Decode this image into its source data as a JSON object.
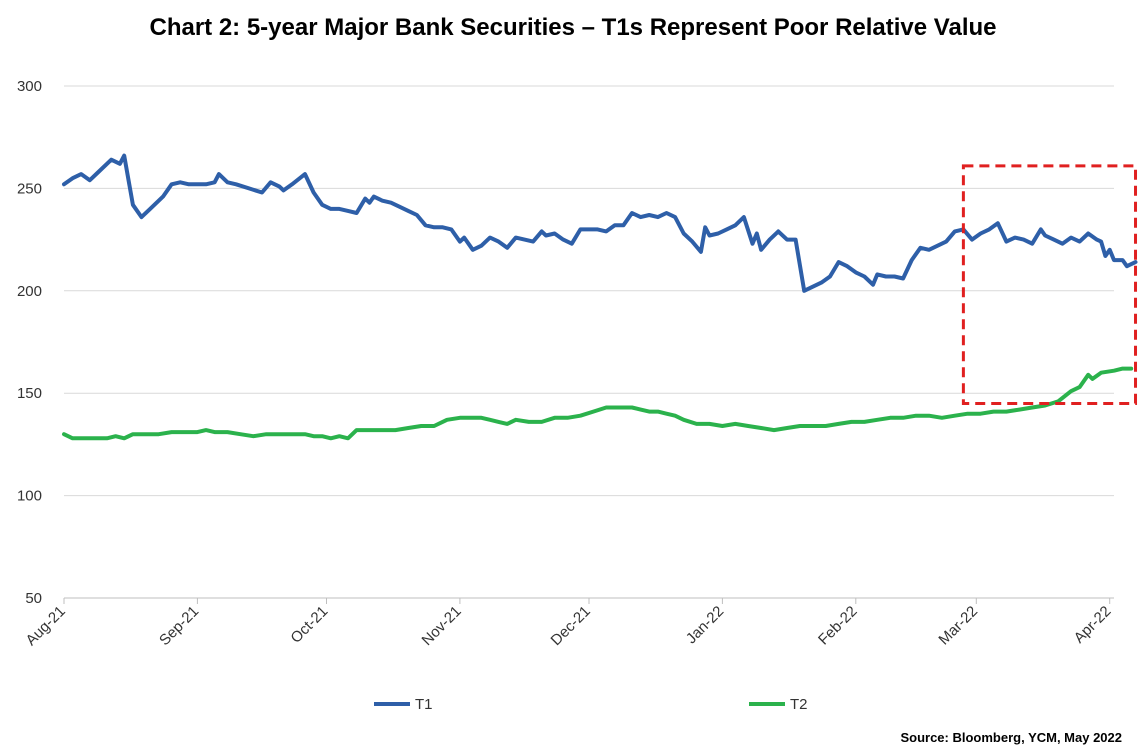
{
  "chart_data": {
    "type": "line",
    "title": "Chart 2: 5-year Major Bank Securities – T1s Represent Poor Relative Value",
    "ylim": [
      50,
      300
    ],
    "yticks": [
      300,
      250,
      200,
      150,
      100,
      50
    ],
    "x_range": [
      0,
      244
    ],
    "xticks": [
      {
        "label": "Aug-21",
        "x": 0
      },
      {
        "label": "Sep-21",
        "x": 31
      },
      {
        "label": "Oct-21",
        "x": 61
      },
      {
        "label": "Nov-21",
        "x": 92
      },
      {
        "label": "Dec-21",
        "x": 122
      },
      {
        "label": "Jan-22",
        "x": 153
      },
      {
        "label": "Feb-22",
        "x": 184
      },
      {
        "label": "Mar-22",
        "x": 212
      },
      {
        "label": "Apr-22",
        "x": 243
      }
    ],
    "grid": true,
    "legend_position": "bottom",
    "highlight_box": {
      "x_start": 209,
      "x_end": 249,
      "y_low": 145,
      "y_high": 261,
      "color": "#e02020"
    },
    "series": [
      {
        "name": "T1",
        "color": "#2e5fa8",
        "points": [
          [
            0,
            252
          ],
          [
            2,
            255
          ],
          [
            4,
            257
          ],
          [
            6,
            254
          ],
          [
            8,
            258
          ],
          [
            11,
            264
          ],
          [
            13,
            262
          ],
          [
            14,
            266
          ],
          [
            16,
            242
          ],
          [
            18,
            236
          ],
          [
            20,
            240
          ],
          [
            23,
            246
          ],
          [
            25,
            252
          ],
          [
            27,
            253
          ],
          [
            29,
            252
          ],
          [
            31,
            252
          ],
          [
            33,
            252
          ],
          [
            35,
            253
          ],
          [
            36,
            257
          ],
          [
            38,
            253
          ],
          [
            40,
            252
          ],
          [
            43,
            250
          ],
          [
            46,
            248
          ],
          [
            48,
            253
          ],
          [
            50,
            251
          ],
          [
            51,
            249
          ],
          [
            53,
            252
          ],
          [
            56,
            257
          ],
          [
            58,
            248
          ],
          [
            60,
            242
          ],
          [
            62,
            240
          ],
          [
            64,
            240
          ],
          [
            66,
            239
          ],
          [
            68,
            238
          ],
          [
            70,
            245
          ],
          [
            71,
            243
          ],
          [
            72,
            246
          ],
          [
            74,
            244
          ],
          [
            76,
            243
          ],
          [
            78,
            241
          ],
          [
            80,
            239
          ],
          [
            82,
            237
          ],
          [
            84,
            232
          ],
          [
            86,
            231
          ],
          [
            88,
            231
          ],
          [
            90,
            230
          ],
          [
            92,
            224
          ],
          [
            93,
            226
          ],
          [
            95,
            220
          ],
          [
            97,
            222
          ],
          [
            99,
            226
          ],
          [
            101,
            224
          ],
          [
            103,
            221
          ],
          [
            105,
            226
          ],
          [
            107,
            225
          ],
          [
            109,
            224
          ],
          [
            111,
            229
          ],
          [
            112,
            227
          ],
          [
            114,
            228
          ],
          [
            116,
            225
          ],
          [
            118,
            223
          ],
          [
            120,
            230
          ],
          [
            122,
            230
          ],
          [
            124,
            230
          ],
          [
            126,
            229
          ],
          [
            128,
            232
          ],
          [
            130,
            232
          ],
          [
            132,
            238
          ],
          [
            134,
            236
          ],
          [
            136,
            237
          ],
          [
            138,
            236
          ],
          [
            140,
            238
          ],
          [
            142,
            236
          ],
          [
            144,
            228
          ],
          [
            146,
            224
          ],
          [
            148,
            219
          ],
          [
            149,
            231
          ],
          [
            150,
            227
          ],
          [
            152,
            228
          ],
          [
            154,
            230
          ],
          [
            156,
            232
          ],
          [
            158,
            236
          ],
          [
            160,
            223
          ],
          [
            161,
            228
          ],
          [
            162,
            220
          ],
          [
            164,
            225
          ],
          [
            166,
            229
          ],
          [
            168,
            225
          ],
          [
            170,
            225
          ],
          [
            172,
            200
          ],
          [
            174,
            202
          ],
          [
            176,
            204
          ],
          [
            178,
            207
          ],
          [
            180,
            214
          ],
          [
            182,
            212
          ],
          [
            184,
            209
          ],
          [
            186,
            207
          ],
          [
            188,
            203
          ],
          [
            189,
            208
          ],
          [
            191,
            207
          ],
          [
            193,
            207
          ],
          [
            195,
            206
          ],
          [
            197,
            215
          ],
          [
            199,
            221
          ],
          [
            201,
            220
          ],
          [
            203,
            222
          ],
          [
            205,
            224
          ],
          [
            207,
            229
          ],
          [
            209,
            230
          ],
          [
            211,
            225
          ],
          [
            213,
            228
          ],
          [
            215,
            230
          ],
          [
            217,
            233
          ],
          [
            219,
            224
          ],
          [
            221,
            226
          ],
          [
            223,
            225
          ],
          [
            225,
            223
          ],
          [
            227,
            230
          ],
          [
            228,
            227
          ],
          [
            230,
            225
          ],
          [
            232,
            223
          ],
          [
            234,
            226
          ],
          [
            235,
            225
          ],
          [
            236,
            224
          ],
          [
            238,
            228
          ],
          [
            240,
            225
          ],
          [
            241,
            224
          ],
          [
            242,
            217
          ],
          [
            243,
            220
          ],
          [
            244,
            215
          ],
          [
            246,
            215
          ],
          [
            247,
            212
          ],
          [
            249,
            214
          ]
        ]
      },
      {
        "name": "T2",
        "color": "#2bb24c",
        "points": [
          [
            0,
            130
          ],
          [
            2,
            128
          ],
          [
            5,
            128
          ],
          [
            8,
            128
          ],
          [
            10,
            128
          ],
          [
            12,
            129
          ],
          [
            14,
            128
          ],
          [
            16,
            130
          ],
          [
            19,
            130
          ],
          [
            22,
            130
          ],
          [
            25,
            131
          ],
          [
            28,
            131
          ],
          [
            31,
            131
          ],
          [
            33,
            132
          ],
          [
            35,
            131
          ],
          [
            38,
            131
          ],
          [
            41,
            130
          ],
          [
            44,
            129
          ],
          [
            47,
            130
          ],
          [
            50,
            130
          ],
          [
            53,
            130
          ],
          [
            56,
            130
          ],
          [
            58,
            129
          ],
          [
            60,
            129
          ],
          [
            62,
            128
          ],
          [
            64,
            129
          ],
          [
            66,
            128
          ],
          [
            68,
            132
          ],
          [
            71,
            132
          ],
          [
            74,
            132
          ],
          [
            77,
            132
          ],
          [
            80,
            133
          ],
          [
            83,
            134
          ],
          [
            86,
            134
          ],
          [
            89,
            137
          ],
          [
            92,
            138
          ],
          [
            95,
            138
          ],
          [
            97,
            138
          ],
          [
            99,
            137
          ],
          [
            101,
            136
          ],
          [
            103,
            135
          ],
          [
            105,
            137
          ],
          [
            108,
            136
          ],
          [
            111,
            136
          ],
          [
            114,
            138
          ],
          [
            117,
            138
          ],
          [
            120,
            139
          ],
          [
            123,
            141
          ],
          [
            126,
            143
          ],
          [
            129,
            143
          ],
          [
            132,
            143
          ],
          [
            134,
            142
          ],
          [
            136,
            141
          ],
          [
            138,
            141
          ],
          [
            140,
            140
          ],
          [
            142,
            139
          ],
          [
            144,
            137
          ],
          [
            147,
            135
          ],
          [
            150,
            135
          ],
          [
            153,
            134
          ],
          [
            156,
            135
          ],
          [
            159,
            134
          ],
          [
            162,
            133
          ],
          [
            165,
            132
          ],
          [
            168,
            133
          ],
          [
            171,
            134
          ],
          [
            174,
            134
          ],
          [
            177,
            134
          ],
          [
            180,
            135
          ],
          [
            183,
            136
          ],
          [
            186,
            136
          ],
          [
            189,
            137
          ],
          [
            192,
            138
          ],
          [
            195,
            138
          ],
          [
            198,
            139
          ],
          [
            201,
            139
          ],
          [
            204,
            138
          ],
          [
            207,
            139
          ],
          [
            210,
            140
          ],
          [
            213,
            140
          ],
          [
            216,
            141
          ],
          [
            219,
            141
          ],
          [
            222,
            142
          ],
          [
            225,
            143
          ],
          [
            228,
            144
          ],
          [
            231,
            146
          ],
          [
            234,
            151
          ],
          [
            236,
            153
          ],
          [
            238,
            159
          ],
          [
            239,
            157
          ],
          [
            241,
            160
          ],
          [
            244,
            161
          ],
          [
            246,
            162
          ],
          [
            248,
            162
          ]
        ]
      }
    ]
  },
  "source": "Source: Bloomberg, YCM, May 2022"
}
